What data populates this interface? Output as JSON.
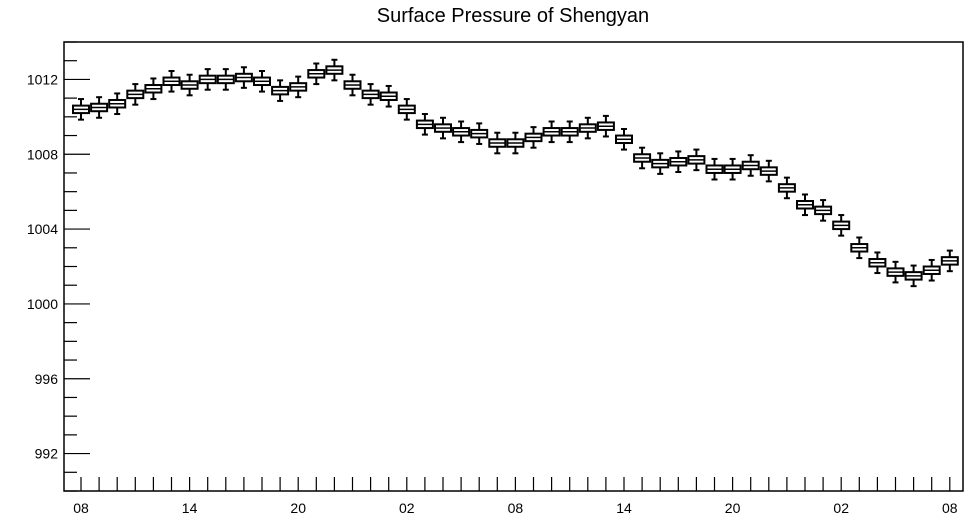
{
  "chart_data": {
    "type": "boxplot",
    "title": "Surface Pressure of Shengyan",
    "xlabel": "",
    "ylabel": "",
    "ylim": [
      990,
      1014
    ],
    "yticks": [
      992,
      996,
      1000,
      1004,
      1008,
      1012
    ],
    "x_tick_labels": [
      {
        "index": 0,
        "label": "08"
      },
      {
        "index": 6,
        "label": "14"
      },
      {
        "index": 12,
        "label": "20"
      },
      {
        "index": 18,
        "label": "02"
      },
      {
        "index": 24,
        "label": "08"
      },
      {
        "index": 30,
        "label": "14"
      },
      {
        "index": 36,
        "label": "20"
      },
      {
        "index": 42,
        "label": "02"
      },
      {
        "index": 48,
        "label": "08"
      }
    ],
    "values": [
      1010.4,
      1010.5,
      1010.7,
      1011.2,
      1011.5,
      1011.9,
      1011.7,
      1012.0,
      1012.0,
      1012.1,
      1011.9,
      1011.4,
      1011.6,
      1012.3,
      1012.5,
      1011.7,
      1011.2,
      1011.1,
      1010.4,
      1009.6,
      1009.4,
      1009.2,
      1009.1,
      1008.6,
      1008.6,
      1008.9,
      1009.2,
      1009.2,
      1009.4,
      1009.5,
      1008.8,
      1007.8,
      1007.5,
      1007.6,
      1007.7,
      1007.2,
      1007.2,
      1007.4,
      1007.1,
      1006.2,
      1005.3,
      1005.0,
      1004.2,
      1003.0,
      1002.2,
      1001.7,
      1001.5,
      1001.8,
      1002.3
    ],
    "whisker_spread": 0.55,
    "box_spread": 0.2,
    "grid": false,
    "legend": "none"
  }
}
